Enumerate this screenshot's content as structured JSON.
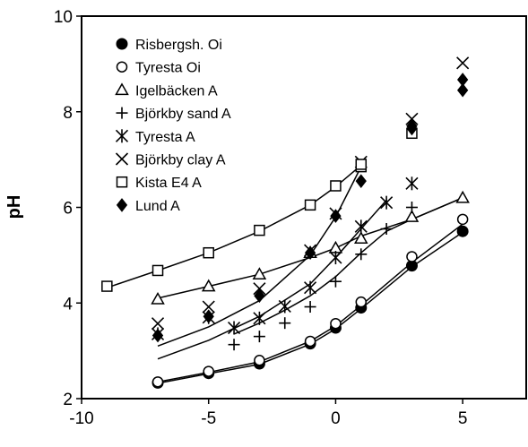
{
  "chart_data": {
    "type": "scatter",
    "xlabel": "",
    "ylabel": "pH",
    "xlim": [
      -10,
      7.5
    ],
    "ylim": [
      2,
      10
    ],
    "xticks": [
      -10,
      -5,
      0,
      5
    ],
    "yticks": [
      2,
      4,
      6,
      8,
      10
    ],
    "x_tick_labels": [
      "-10",
      "-5",
      "0",
      "5"
    ],
    "y_tick_labels": [
      "2",
      "4",
      "6",
      "8",
      "10"
    ],
    "grid": false,
    "legend_position": "top-left",
    "series": [
      {
        "name": "Risbergsh. Oi",
        "marker": "filled-circle",
        "x": [
          -7,
          -5,
          -3,
          -1,
          0,
          1,
          3,
          5
        ],
        "y": [
          2.33,
          2.53,
          2.73,
          3.15,
          3.48,
          3.9,
          4.78,
          5.5
        ]
      },
      {
        "name": "Tyresta Oi",
        "marker": "open-circle",
        "x": [
          -7,
          -5,
          -3,
          -1,
          0,
          1,
          3,
          5
        ],
        "y": [
          2.35,
          2.57,
          2.8,
          3.2,
          3.57,
          4.02,
          4.97,
          5.75
        ]
      },
      {
        "name": "Igelbäcken A",
        "marker": "open-triangle",
        "x": [
          -7,
          -5,
          -3,
          -1,
          0,
          1,
          3,
          5
        ],
        "y": [
          4.08,
          4.35,
          4.6,
          5.05,
          5.15,
          5.35,
          5.8,
          6.2
        ]
      },
      {
        "name": "Björkby sand A",
        "marker": "plus",
        "x": [
          -4,
          -3,
          -2,
          -1,
          0,
          1,
          2,
          3
        ],
        "y": [
          3.13,
          3.3,
          3.58,
          3.92,
          4.45,
          5.02,
          5.55,
          6.0
        ]
      },
      {
        "name": "Tyresta A",
        "marker": "asterisk",
        "x": [
          -7,
          -5,
          -4,
          -3,
          -2,
          -1,
          0,
          1,
          2,
          3
        ],
        "y": [
          3.35,
          3.7,
          3.48,
          3.68,
          3.93,
          4.32,
          4.95,
          5.6,
          6.1,
          6.5
        ]
      },
      {
        "name": "Björkby clay A",
        "marker": "x",
        "x": [
          -7,
          -5,
          -3,
          -1,
          0,
          1,
          3,
          5
        ],
        "y": [
          3.57,
          3.92,
          4.3,
          5.1,
          5.87,
          6.95,
          7.85,
          9.02
        ]
      },
      {
        "name": "Kista E4 A",
        "marker": "open-square",
        "x": [
          -9,
          -7,
          -5,
          -3,
          -1,
          0,
          1,
          3
        ],
        "y": [
          4.35,
          4.68,
          5.05,
          5.52,
          6.05,
          6.45,
          6.85,
          7.55
        ]
      },
      {
        "name": "Lund A",
        "marker": "filled-diamond",
        "x": [
          -7,
          -5,
          -3,
          -1,
          0,
          1,
          3,
          5
        ],
        "y": [
          3.32,
          3.72,
          4.15,
          5.05,
          5.82,
          6.55,
          7.65,
          8.45
        ]
      }
    ],
    "extra_points": [
      {
        "series": "Lund A",
        "x": 5,
        "y": 8.67
      },
      {
        "series": "Lund A",
        "x": 3,
        "y": 7.7
      },
      {
        "series": "Kista E4 A",
        "x": 1,
        "y": 6.9
      }
    ],
    "curves": [
      {
        "x": [
          -7,
          -5,
          -3,
          -1,
          0,
          1,
          3,
          5
        ],
        "y": [
          2.35,
          2.55,
          2.77,
          3.2,
          3.52,
          3.95,
          4.85,
          5.65
        ]
      },
      {
        "x": [
          -7,
          -5,
          -3,
          -1,
          0,
          1,
          3,
          5
        ],
        "y": [
          2.32,
          2.52,
          2.72,
          3.14,
          3.46,
          3.88,
          4.76,
          5.48
        ]
      },
      {
        "x": [
          -9,
          -7,
          -5,
          -3,
          -1,
          0,
          1
        ],
        "y": [
          4.32,
          4.68,
          5.05,
          5.5,
          6.05,
          6.43,
          6.88
        ]
      },
      {
        "x": [
          -7,
          -5,
          -3,
          -1,
          0,
          1,
          3,
          5
        ],
        "y": [
          4.1,
          4.35,
          4.6,
          4.95,
          5.15,
          5.4,
          5.75,
          6.2
        ]
      },
      {
        "x": [
          -7,
          -5,
          -3,
          -1,
          0,
          1
        ],
        "y": [
          3.1,
          3.5,
          4.05,
          5.0,
          5.8,
          6.85
        ]
      },
      {
        "x": [
          -7,
          -5,
          -3,
          -1,
          0,
          1,
          2
        ],
        "y": [
          2.83,
          3.22,
          3.72,
          4.4,
          4.95,
          5.55,
          6.15
        ]
      },
      {
        "x": [
          -4,
          -3,
          -2,
          -1,
          0,
          1,
          2,
          3,
          5
        ],
        "y": [
          3.35,
          3.58,
          3.85,
          4.15,
          4.55,
          5.05,
          5.5,
          5.75,
          6.2
        ]
      }
    ]
  }
}
